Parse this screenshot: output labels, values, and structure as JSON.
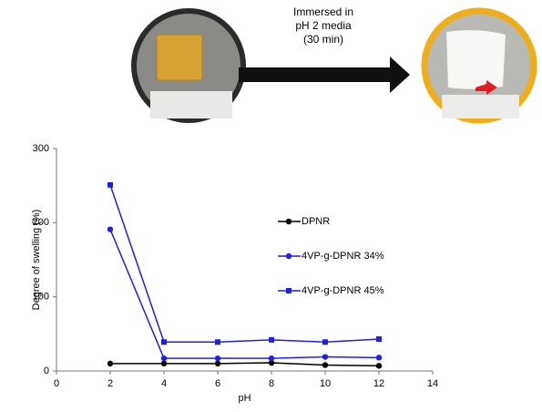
{
  "chart_data": {
    "type": "line",
    "annotation": [
      "Immersed in",
      "pH 2 media",
      "(30 min)"
    ],
    "x_label": "pH",
    "y_label": "Degree of swelling (%)",
    "x": [
      2,
      4,
      6,
      8,
      10,
      12
    ],
    "series": [
      {
        "name": "DPNR",
        "color": "#000000",
        "marker": "circle",
        "values": [
          10,
          10,
          10,
          11,
          8,
          7
        ]
      },
      {
        "name": "4VP-g-DPNR 34%",
        "color": "#1f1fe6",
        "marker": "circle",
        "values": [
          191,
          17,
          17,
          17,
          19,
          18
        ]
      },
      {
        "name": "4VP-g-DPNR 45%",
        "color": "#1f1fe6",
        "marker": "square",
        "values": [
          251,
          39,
          39,
          42,
          39,
          43
        ]
      }
    ],
    "xlim": [
      0,
      14
    ],
    "xticks": [
      0,
      2,
      4,
      6,
      8,
      10,
      12,
      14
    ],
    "ylim": [
      0,
      300
    ],
    "yticks": [
      0,
      100,
      200,
      300
    ]
  }
}
